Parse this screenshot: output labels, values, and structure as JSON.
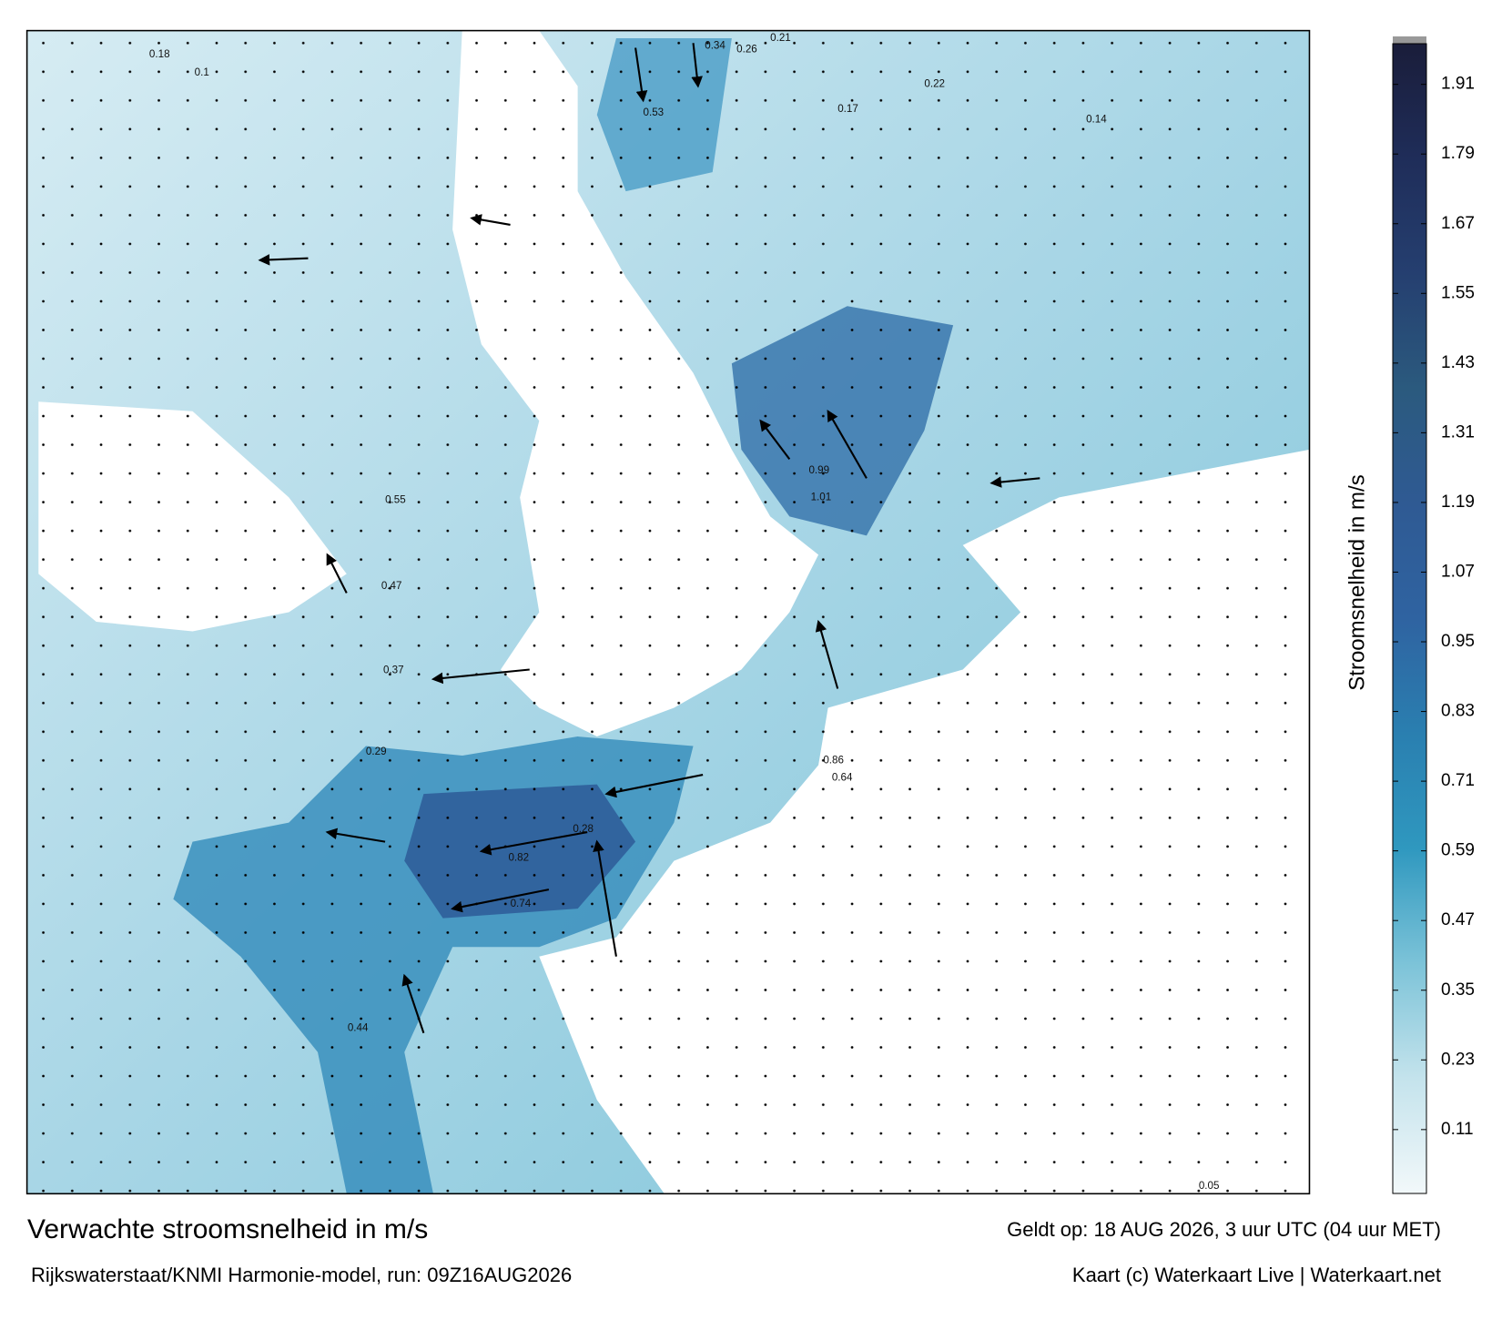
{
  "header": {
    "title": "Verwachte stroomsnelheid in m/s",
    "subtitle": "Rijkswaterstaat/KNMI Harmonie-model, run: 09Z16AUG2026",
    "valid": "Geldt op: 18 AUG 2026, 3 uur UTC (04 uur MET)",
    "credit": "Kaart (c) Waterkaart Live | Waterkaart.net"
  },
  "colorbar": {
    "label": "Stroomsnelheid in m/s",
    "lim": [
      0,
      1.98
    ],
    "ticks": [
      0.11,
      0.23,
      0.35,
      0.47,
      0.59,
      0.71,
      0.83,
      0.95,
      1.07,
      1.19,
      1.31,
      1.43,
      1.55,
      1.67,
      1.79,
      1.91
    ],
    "colors": [
      "#f2f8fa",
      "#c4e3ec",
      "#7cc3d8",
      "#2f98bf",
      "#2a7fb0",
      "#2f63a1",
      "#2f5a93",
      "#2b5a7e",
      "#253f70",
      "#1f2d59",
      "#1a1d3a"
    ],
    "cap_color": "#999999"
  },
  "map_labels": [
    "0.18",
    "0.1",
    "0.34",
    "0.26",
    "0.21",
    "0.53",
    "0.99",
    "1.01",
    "0.86",
    "0.64",
    "0.82",
    "0.74",
    "0.55",
    "0.47",
    "0.37",
    "0.29",
    "0.44",
    "0.17",
    "0.14",
    "0.22",
    "0.05",
    "0.28"
  ]
}
